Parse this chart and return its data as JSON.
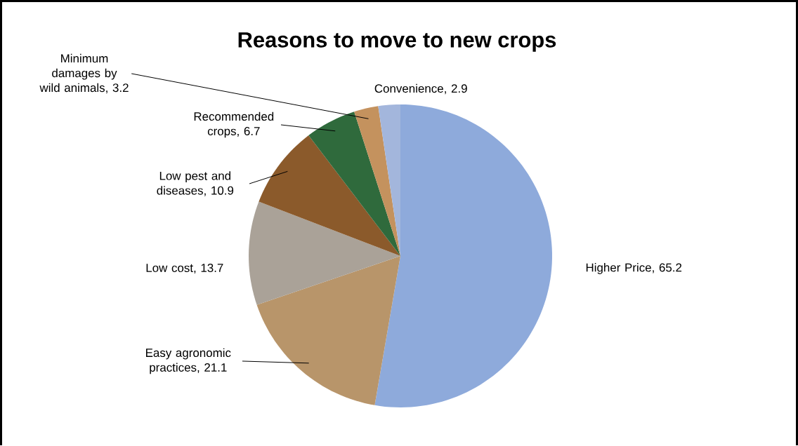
{
  "chart_data": {
    "type": "pie",
    "title": "Reasons to move to new crops",
    "categories": [
      "Higher Price",
      "Easy agronomic practices",
      "Low cost",
      "Low pest and diseases",
      "Recommended crops",
      "Minimum damages by wild animals",
      "Convenience"
    ],
    "values": [
      65.2,
      21.1,
      13.7,
      10.9,
      6.7,
      3.2,
      2.9
    ],
    "value_labels": [
      ", 65.2",
      ", 21.1",
      ", 13.7",
      ", 10.9",
      ", 6.7",
      ", 3.2",
      ", 2.9"
    ],
    "colors": [
      "#8eaadb",
      "#b8956a",
      "#aaa298",
      "#8b5a2b",
      "#2f6a3c",
      "#c4925e",
      "#a3b6dc"
    ]
  }
}
